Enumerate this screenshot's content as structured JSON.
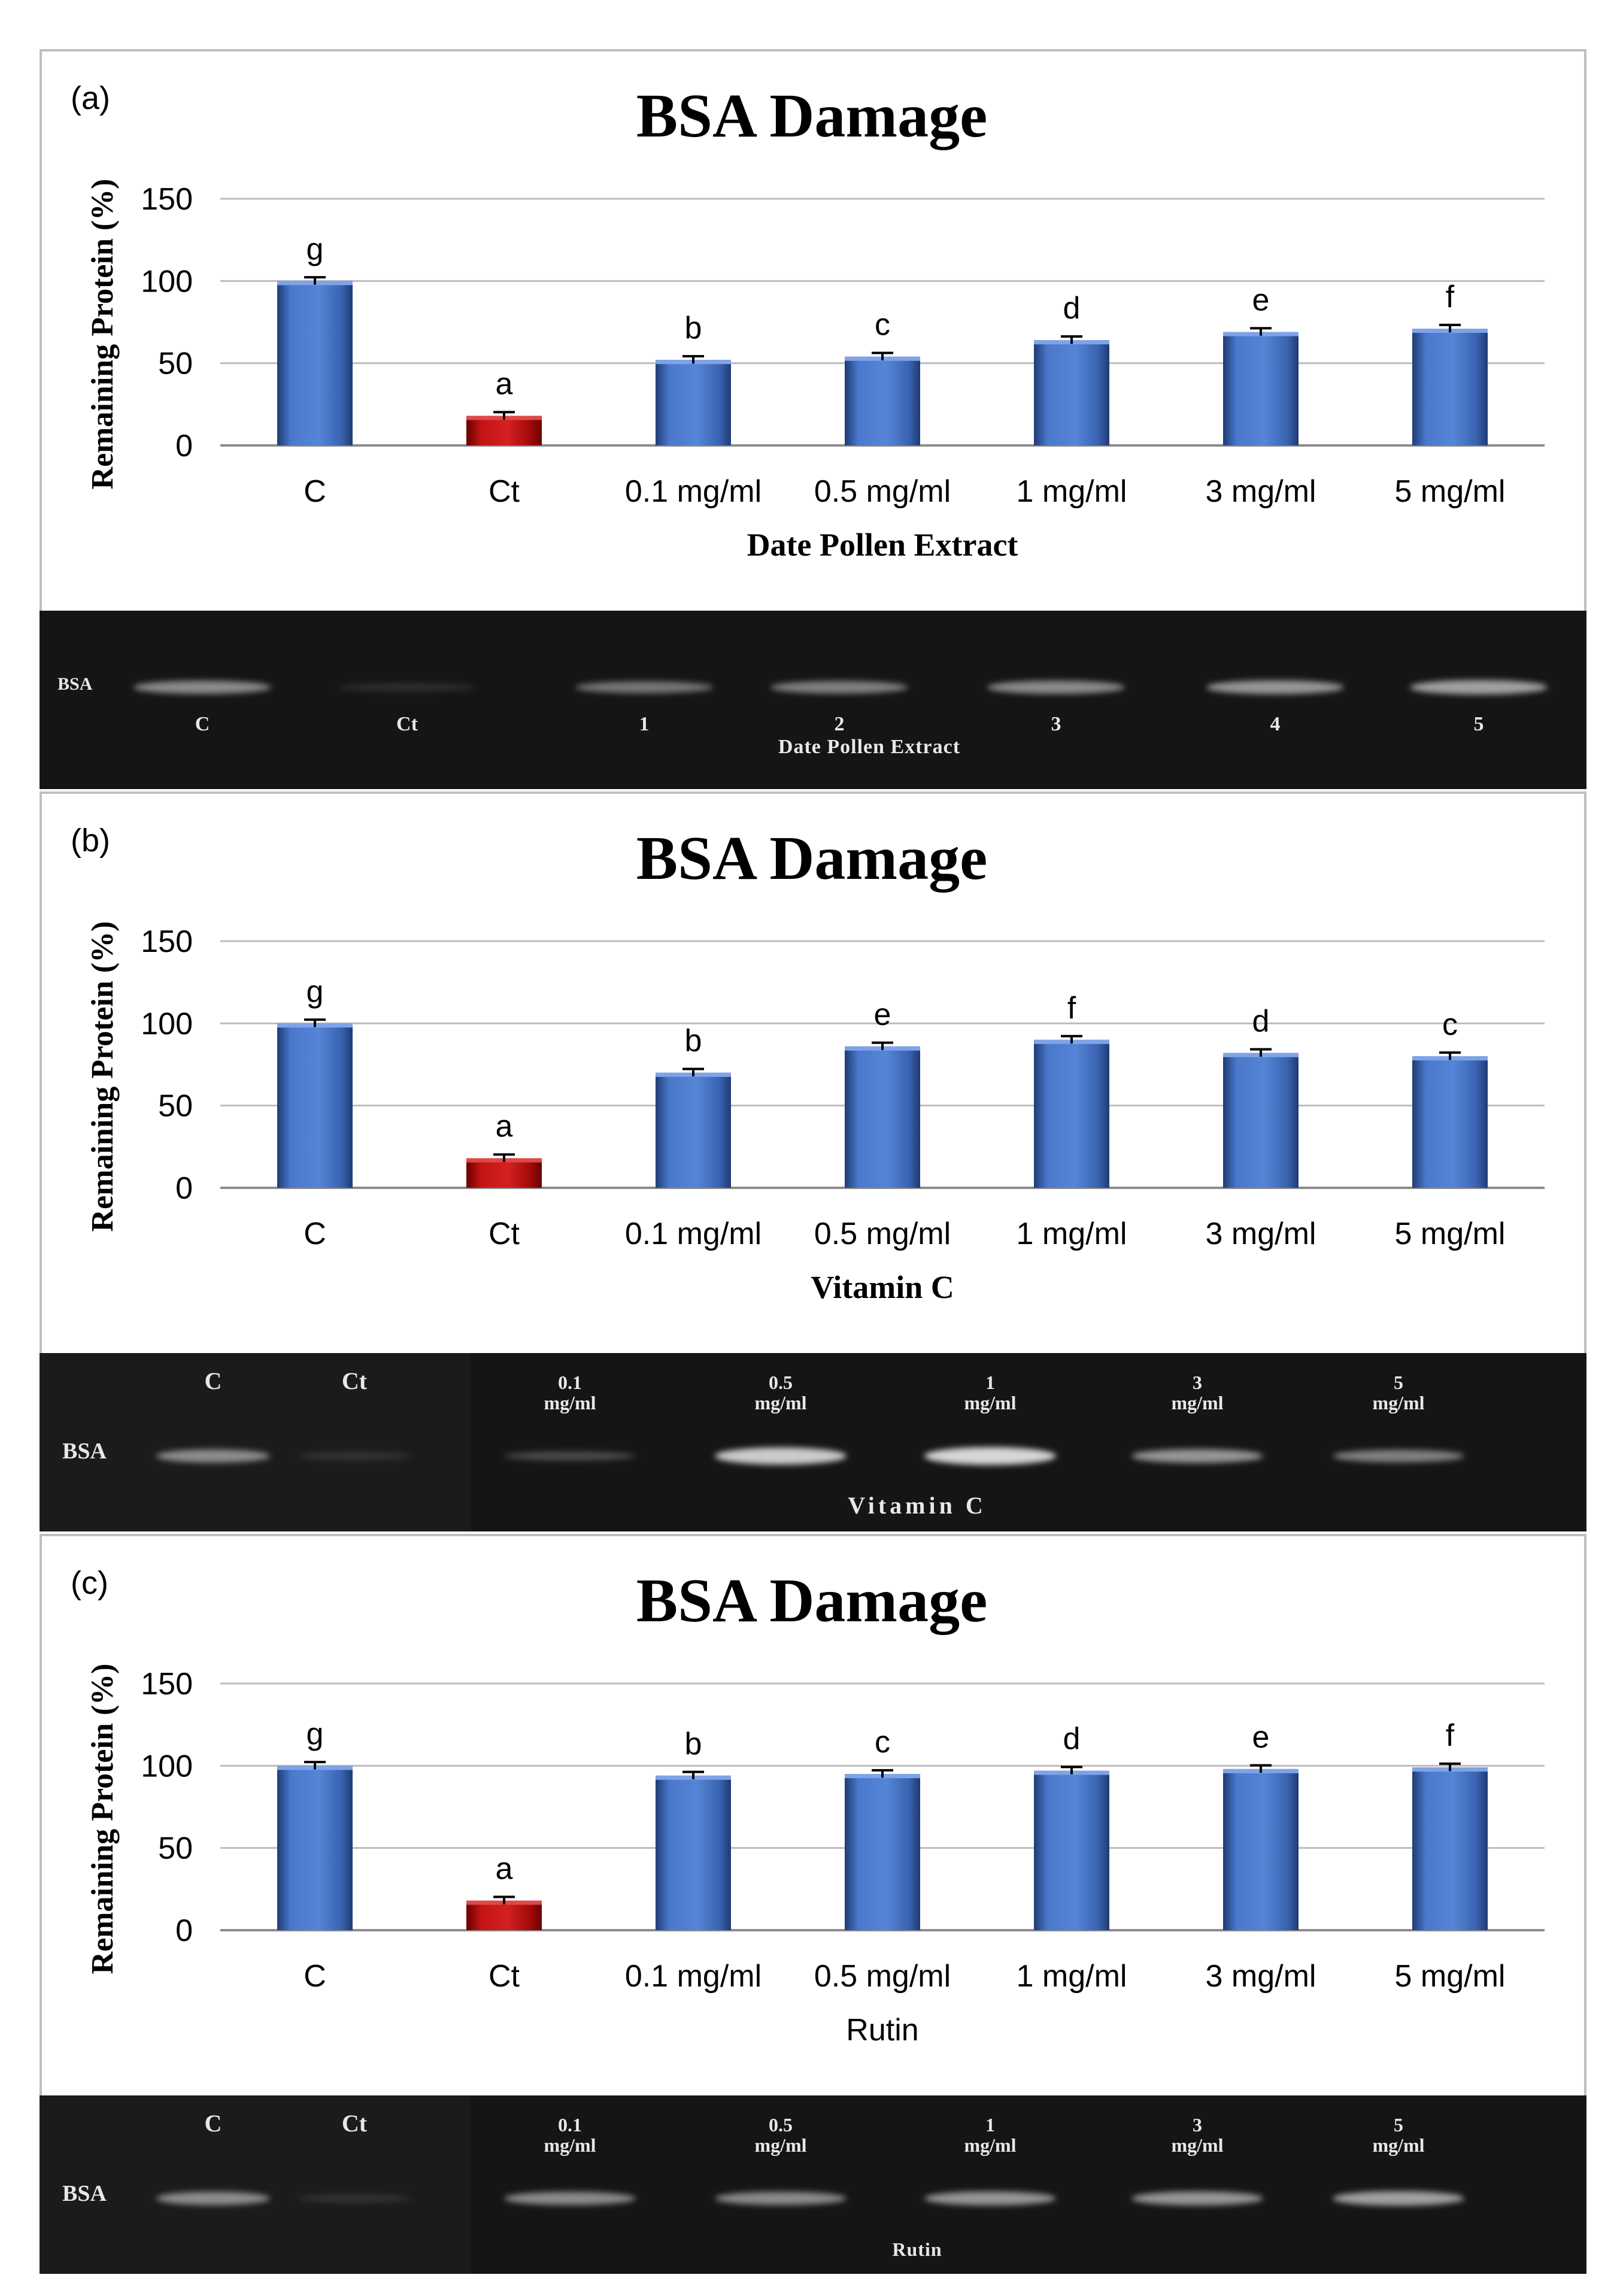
{
  "colors": {
    "bar_blue": "#4472C4",
    "bar_blue_dark": "#1F3B73",
    "bar_red": "#C00000",
    "bar_red_dark": "#6B0000",
    "gel_bg": "#151515",
    "grid": "#BDBDBD"
  },
  "chart_data": [
    {
      "type": "bar",
      "panel_label": "(a)",
      "title": "BSA Damage",
      "ylabel": "Remaining Protein (%)",
      "xlabel": "Date Pollen Extract",
      "ylim": [
        0,
        150
      ],
      "yticks": [
        "0",
        "50",
        "100",
        "150"
      ],
      "grid": true,
      "categories": [
        "C",
        "Ct",
        "0.1 mg/ml",
        "0.5 mg/ml",
        "1 mg/ml",
        "3 mg/ml",
        "5 mg/ml"
      ],
      "values": [
        100,
        18,
        52,
        54,
        64,
        69,
        71
      ],
      "errors": [
        0.8,
        0.8,
        0.8,
        0.8,
        0.8,
        0.8,
        0.8
      ],
      "letters": [
        "g",
        "a",
        "b",
        "c",
        "d",
        "e",
        "f"
      ],
      "highlight": [
        false,
        true,
        false,
        false,
        false,
        false,
        false
      ],
      "gel": {
        "band_label": "BSA",
        "lane_labels": [
          "C",
          "Ct",
          "1",
          "2",
          "3",
          "4",
          "5"
        ],
        "caption": "Date Pollen Extract",
        "band_intensity": [
          0.55,
          0.12,
          0.45,
          0.5,
          0.55,
          0.6,
          0.65
        ]
      }
    },
    {
      "type": "bar",
      "panel_label": "(b)",
      "title": "BSA Damage",
      "ylabel": "Remaining Protein (%)",
      "xlabel": "Vitamin C",
      "ylim": [
        0,
        150
      ],
      "yticks": [
        "0",
        "50",
        "100",
        "150"
      ],
      "grid": true,
      "categories": [
        "C",
        "Ct",
        "0.1 mg/ml",
        "0.5 mg/ml",
        "1 mg/ml",
        "3 mg/ml",
        "5 mg/ml"
      ],
      "values": [
        100,
        18,
        70,
        86,
        90,
        82,
        80
      ],
      "errors": [
        0.8,
        0.8,
        0.8,
        0.8,
        0.8,
        0.8,
        0.8
      ],
      "letters": [
        "g",
        "a",
        "b",
        "e",
        "f",
        "d",
        "c"
      ],
      "highlight": [
        false,
        true,
        false,
        false,
        false,
        false,
        false
      ],
      "gel": {
        "band_label": "BSA",
        "lane_labels": [
          "C",
          "Ct",
          "0.1\nmg/ml",
          "0.5\nmg/ml",
          "1\nmg/ml",
          "3\nmg/ml",
          "5\nmg/ml"
        ],
        "caption": "Vitamin C",
        "band_intensity": [
          0.55,
          0.12,
          0.25,
          0.85,
          0.9,
          0.6,
          0.5
        ]
      }
    },
    {
      "type": "bar",
      "panel_label": "(c)",
      "title": "BSA Damage",
      "ylabel": "Remaining Protein (%)",
      "xlabel": "Rutin",
      "ylim": [
        0,
        150
      ],
      "yticks": [
        "0",
        "50",
        "100",
        "150"
      ],
      "grid": true,
      "categories": [
        "C",
        "Ct",
        "0.1 mg/ml",
        "0.5 mg/ml",
        "1 mg/ml",
        "3 mg/ml",
        "5 mg/ml"
      ],
      "values": [
        100,
        18,
        94,
        95,
        97,
        98,
        99
      ],
      "errors": [
        0.8,
        0.8,
        0.8,
        0.8,
        0.8,
        0.8,
        0.8
      ],
      "letters": [
        "g",
        "a",
        "b",
        "c",
        "d",
        "e",
        "f"
      ],
      "highlight": [
        false,
        true,
        false,
        false,
        false,
        false,
        false
      ],
      "gel": {
        "band_label": "BSA",
        "lane_labels": [
          "C",
          "Ct",
          "0.1\nmg/ml",
          "0.5\nmg/ml",
          "1\nmg/ml",
          "3\nmg/ml",
          "5\nmg/ml"
        ],
        "caption": "Rutin",
        "band_intensity": [
          0.55,
          0.12,
          0.55,
          0.55,
          0.6,
          0.6,
          0.65
        ]
      }
    }
  ]
}
